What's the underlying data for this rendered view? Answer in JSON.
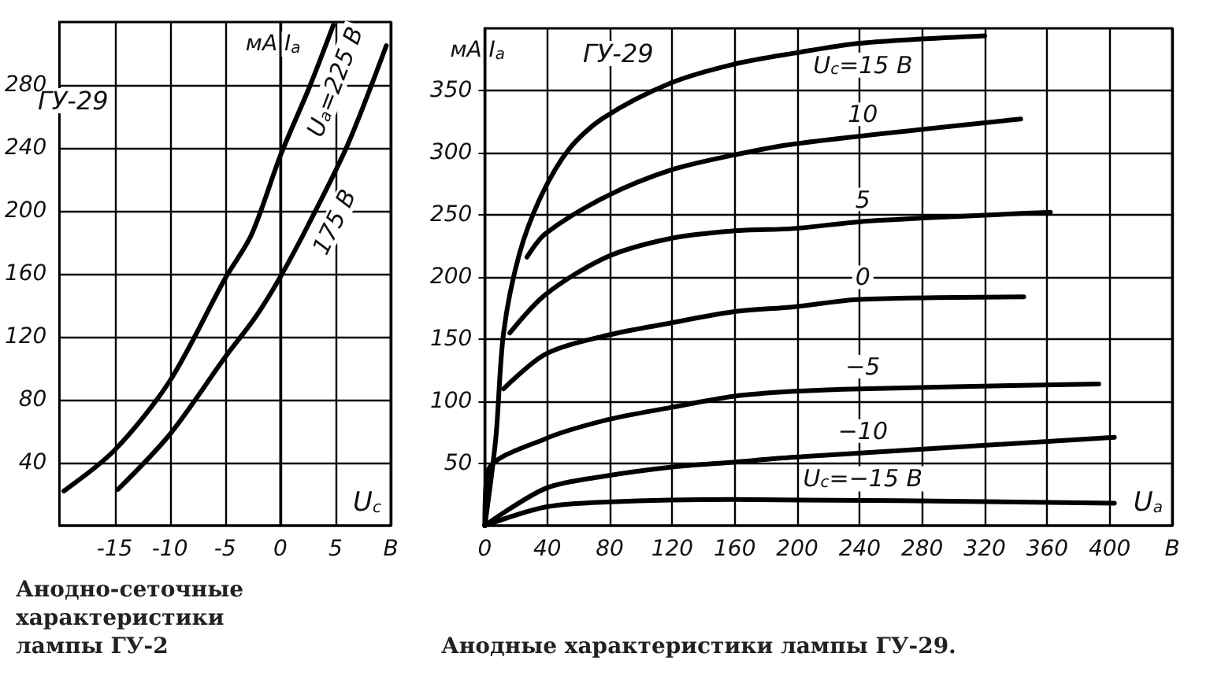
{
  "chart_data": [
    {
      "type": "line",
      "title": "ГУ-29",
      "xlabel": "U$_{c}$",
      "ylabel": "мА I$_{a}$",
      "xlim": [
        -20,
        10
      ],
      "ylim": [
        0,
        320
      ],
      "xticks": [
        -15,
        -10,
        -5,
        0,
        5,
        {
          "value": 10,
          "label": "В"
        }
      ],
      "yticks": [
        40,
        80,
        120,
        160,
        200,
        240,
        280
      ],
      "grid": true,
      "series": [
        {
          "name": "U$_{a}$=225 В",
          "color": "#000000",
          "x": [
            -19.6,
            -15,
            -10,
            -5,
            -2.6,
            0,
            2.6,
            4.8
          ],
          "values": [
            22,
            48,
            92,
            157,
            185,
            235,
            278,
            318
          ]
        },
        {
          "name": "175 В",
          "color": "#000000",
          "x": [
            -14.7,
            -10,
            -5,
            -2.2,
            0,
            2.6,
            6.1,
            9.6
          ],
          "values": [
            23,
            58,
            107,
            133,
            158,
            192,
            242,
            305
          ]
        }
      ],
      "annotations": [
        "Анодно-сеточные характеристики лампы ГУ-2"
      ]
    },
    {
      "type": "line",
      "title": "ГУ-29",
      "xlabel": "U$_{a}$",
      "ylabel": "мА I$_{a}$",
      "xlim": [
        0,
        440
      ],
      "ylim": [
        0,
        400
      ],
      "xticks": [
        0,
        40,
        80,
        120,
        160,
        200,
        240,
        280,
        320,
        360,
        400,
        {
          "value": 440,
          "label": "В"
        }
      ],
      "yticks": [
        50,
        100,
        150,
        200,
        250,
        300,
        350
      ],
      "grid": true,
      "series": [
        {
          "name": "U$_{c}$=15 В",
          "color": "#000000",
          "x": [
            0,
            7,
            12,
            22,
            36,
            54,
            76,
            119,
            159,
            198,
            240,
            320
          ],
          "values": [
            0,
            70,
            155,
            218,
            265,
            303,
            328,
            356,
            371,
            380,
            388,
            394
          ]
        },
        {
          "name": "10",
          "color": "#000000",
          "x": [
            27,
            39,
            78,
            119,
            159,
            198,
            343
          ],
          "values": [
            216,
            235,
            265,
            286,
            298,
            307,
            327
          ]
        },
        {
          "name": "5",
          "color": "#000000",
          "x": [
            16,
            39,
            78,
            119,
            159,
            198,
            245,
            362
          ],
          "values": [
            155,
            186,
            216,
            231,
            237,
            239,
            245,
            252
          ]
        },
        {
          "name": "0",
          "color": "#000000",
          "x": [
            12,
            39,
            78,
            119,
            159,
            198,
            240,
            345
          ],
          "values": [
            110,
            138,
            153,
            163,
            172,
            176,
            182,
            184
          ]
        },
        {
          "name": "−5",
          "color": "#000000",
          "x": [
            0,
            2,
            39,
            78,
            119,
            159,
            198,
            240,
            393
          ],
          "values": [
            0,
            44,
            70,
            85,
            95,
            104,
            108,
            110,
            114
          ]
        },
        {
          "name": "−10",
          "color": "#000000",
          "x": [
            0,
            39,
            78,
            119,
            159,
            198,
            403
          ],
          "values": [
            0,
            30,
            40,
            47,
            51,
            55,
            71
          ]
        },
        {
          "name": "U$_{c}$=−15 В",
          "color": "#000000",
          "x": [
            0,
            39,
            78,
            159,
            403
          ],
          "values": [
            0,
            15,
            19,
            21,
            18
          ]
        }
      ],
      "annotations": [
        "Анодные характеристики лампы ГУ-29."
      ]
    }
  ]
}
